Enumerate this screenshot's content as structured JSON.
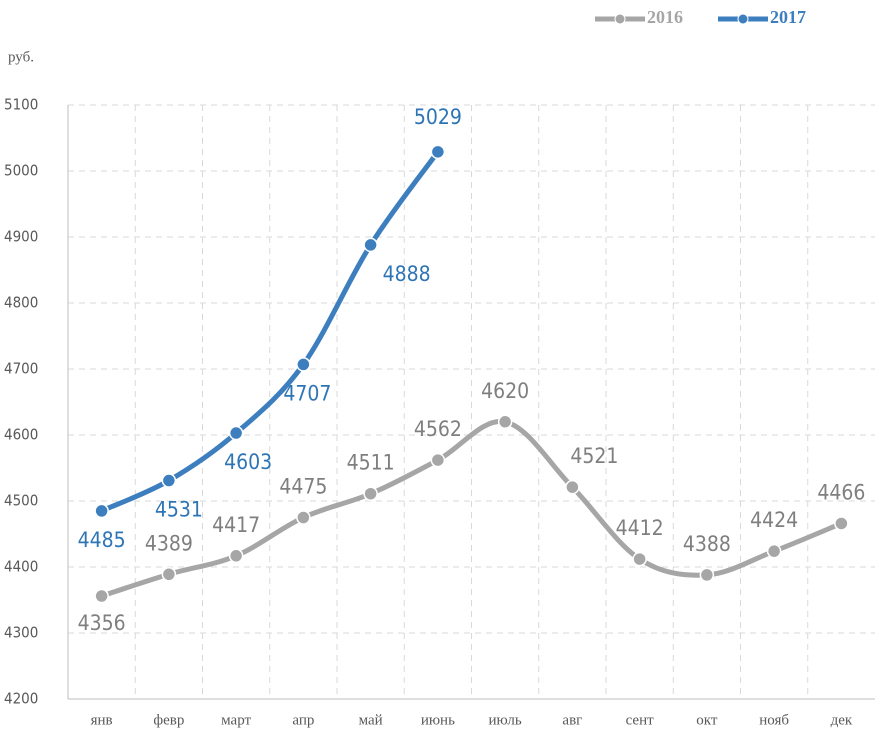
{
  "chart_data": {
    "type": "line",
    "y_label": "руб.",
    "categories": [
      "янв",
      "февр",
      "март",
      "апр",
      "май",
      "июнь",
      "июль",
      "авг",
      "сент",
      "окт",
      "нояб",
      "дек"
    ],
    "series": [
      {
        "name": "2016",
        "color": "#a6a6a6",
        "label_color": "#7f7f7f",
        "values": [
          4356,
          4389,
          4417,
          4475,
          4511,
          4562,
          4620,
          4521,
          4412,
          4388,
          4424,
          4466
        ]
      },
      {
        "name": "2017",
        "color": "#3d7ebf",
        "label_color": "#2e75b6",
        "values": [
          4485,
          4531,
          4603,
          4707,
          4888,
          5029,
          null,
          null,
          null,
          null,
          null,
          null
        ]
      }
    ],
    "ylim": [
      4200,
      5100
    ],
    "yticks": [
      4200,
      4300,
      4400,
      4500,
      4600,
      4700,
      4800,
      4900,
      5000,
      5100
    ],
    "grid": true,
    "legend": "top-right",
    "smooth": true
  }
}
